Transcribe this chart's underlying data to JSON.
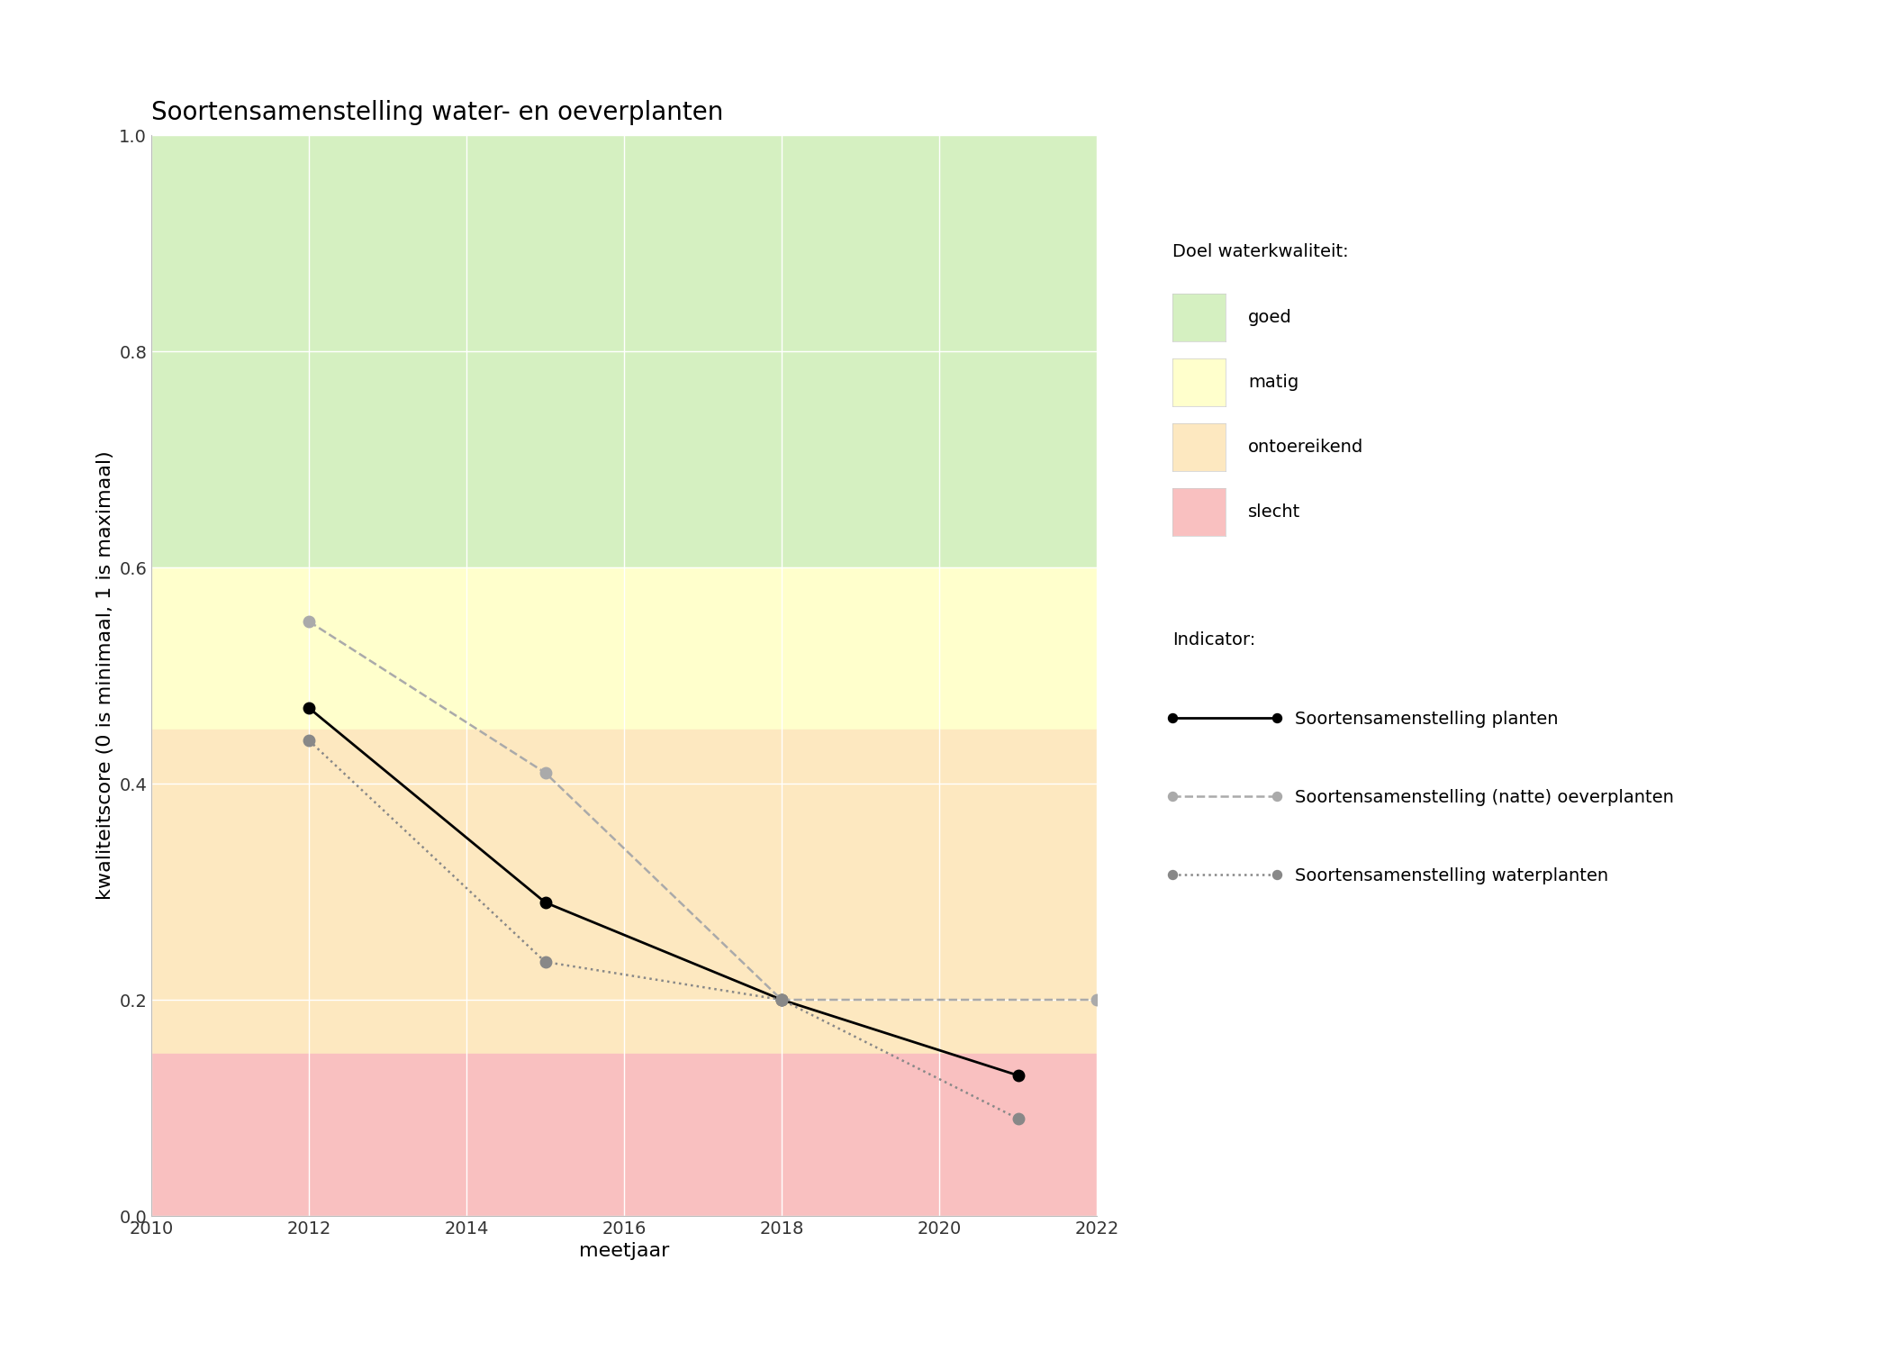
{
  "title": "Soortensamenstelling water- en oeverplanten",
  "xlabel": "meetjaar",
  "ylabel": "kwaliteitscore (0 is minimaal, 1 is maximaal)",
  "xlim": [
    2010,
    2022
  ],
  "ylim": [
    0.0,
    1.0
  ],
  "xticks": [
    2010,
    2012,
    2014,
    2016,
    2018,
    2020,
    2022
  ],
  "yticks": [
    0.0,
    0.2,
    0.4,
    0.6,
    0.8,
    1.0
  ],
  "bg_colors_ordered": [
    {
      "key": "goed",
      "color": "#d5f0c1",
      "ymin": 0.6,
      "ymax": 1.0
    },
    {
      "key": "matig",
      "color": "#ffffcc",
      "ymin": 0.45,
      "ymax": 0.6
    },
    {
      "key": "ontoereikend",
      "color": "#fde8c0",
      "ymin": 0.15,
      "ymax": 0.45
    },
    {
      "key": "slecht",
      "color": "#f9c0c0",
      "ymin": 0.0,
      "ymax": 0.15
    }
  ],
  "series_ordered": [
    {
      "key": "planten",
      "years": [
        2012,
        2015,
        2018,
        2021
      ],
      "values": [
        0.47,
        0.29,
        0.2,
        0.13
      ],
      "color": "#000000",
      "linestyle": "solid",
      "marker": "o",
      "markersize": 9,
      "linewidth": 2.0,
      "label": "Soortensamenstelling planten"
    },
    {
      "key": "oeverplanten",
      "years": [
        2012,
        2015,
        2018,
        2022
      ],
      "values": [
        0.55,
        0.41,
        0.2,
        0.2
      ],
      "color": "#aaaaaa",
      "linestyle": "dashed",
      "marker": "o",
      "markersize": 9,
      "linewidth": 1.8,
      "label": "Soortensamenstelling (natte) oeverplanten"
    },
    {
      "key": "waterplanten",
      "years": [
        2012,
        2015,
        2018,
        2021
      ],
      "values": [
        0.44,
        0.235,
        0.2,
        0.09
      ],
      "color": "#888888",
      "linestyle": "dotted",
      "marker": "o",
      "markersize": 9,
      "linewidth": 1.8,
      "label": "Soortensamenstelling waterplanten"
    }
  ],
  "legend_labels_kwaliteit": [
    "goed",
    "matig",
    "ontoereikend",
    "slecht"
  ],
  "legend_colors": {
    "goed": "#d5f0c1",
    "matig": "#ffffcc",
    "ontoereikend": "#fde8c0",
    "slecht": "#f9c0c0"
  },
  "title_fontsize": 20,
  "axis_label_fontsize": 16,
  "tick_fontsize": 14,
  "legend_fontsize": 14,
  "background_color": "#ffffff"
}
